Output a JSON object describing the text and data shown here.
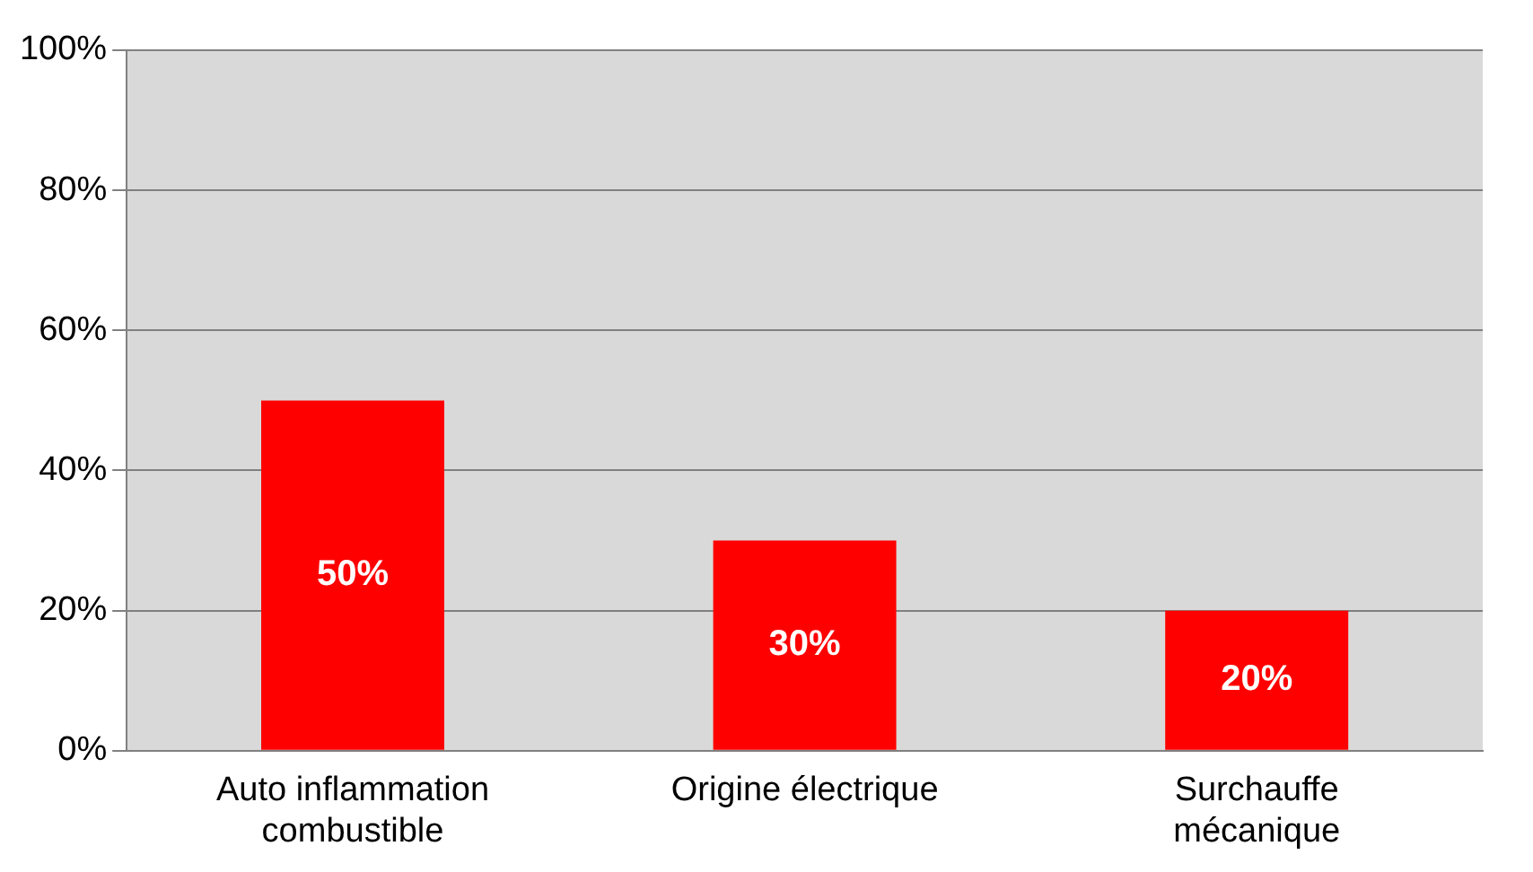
{
  "chart_data": {
    "type": "bar",
    "categories": [
      "Auto inflammation combustible",
      "Origine électrique",
      "Surchauffe mécanique"
    ],
    "values": [
      50,
      30,
      20
    ],
    "value_labels": [
      "50%",
      "30%",
      "20%"
    ],
    "color": "#ff0000",
    "ylim": [
      0,
      100
    ],
    "yticks": [
      {
        "value": 0,
        "label": "0%"
      },
      {
        "value": 20,
        "label": "20%"
      },
      {
        "value": 40,
        "label": "40%"
      },
      {
        "value": 60,
        "label": "60%"
      },
      {
        "value": 80,
        "label": "80%"
      },
      {
        "value": 100,
        "label": "100%"
      }
    ],
    "grid": "y",
    "legend": false
  }
}
